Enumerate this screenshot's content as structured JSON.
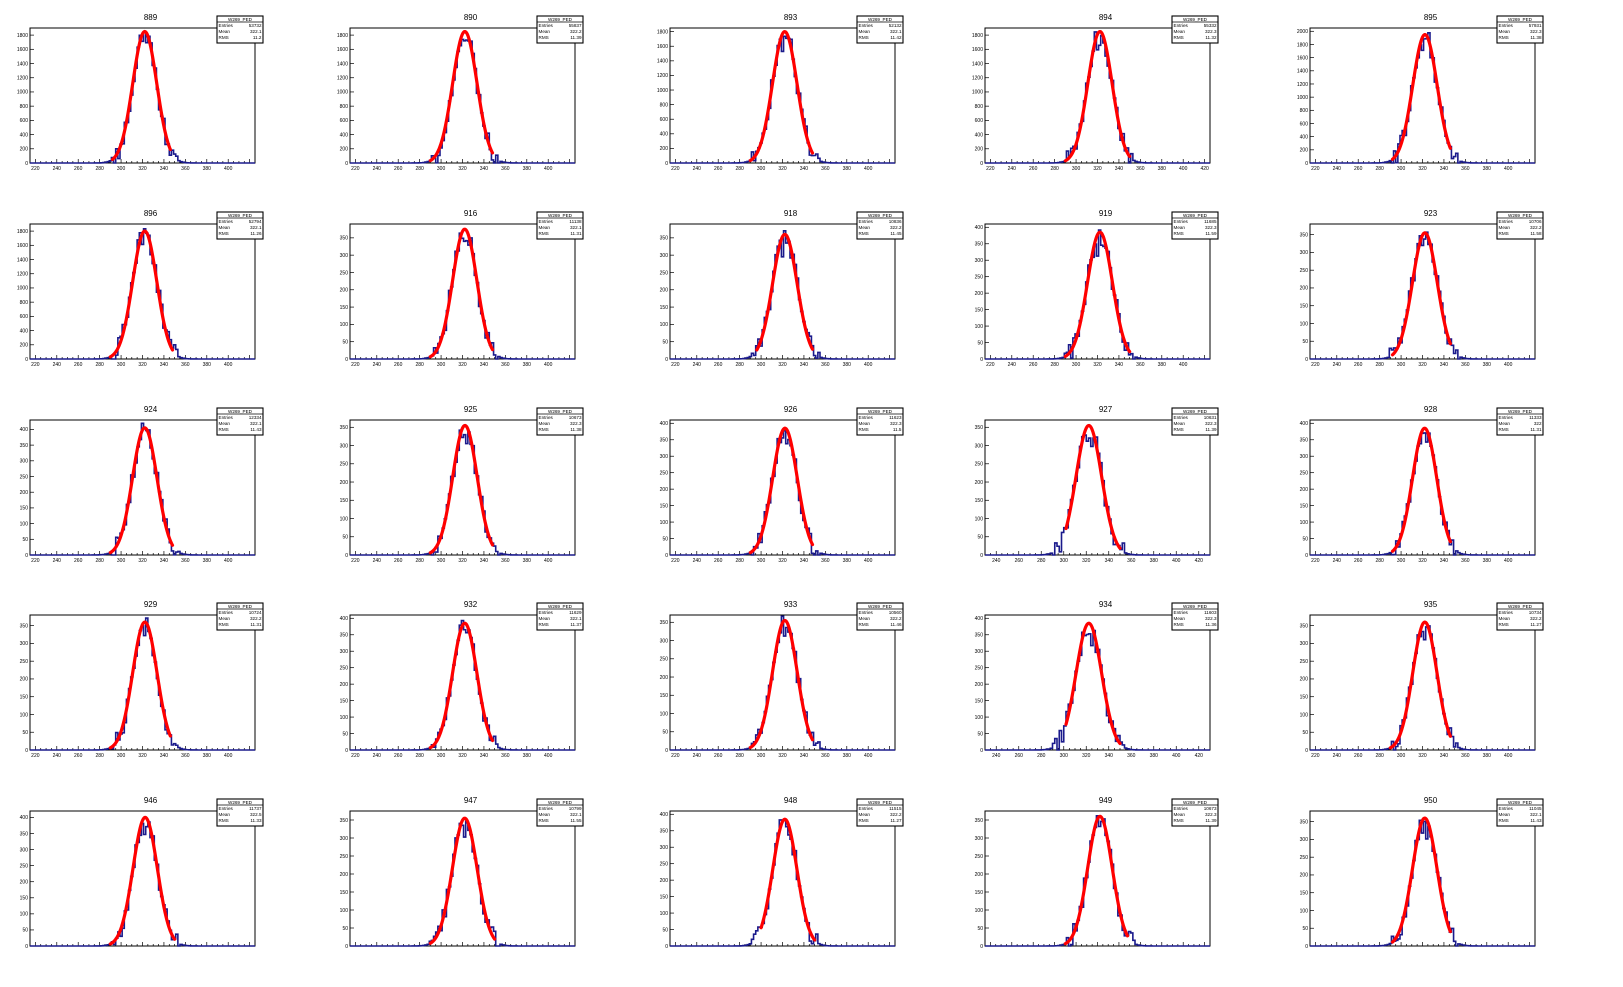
{
  "page": {
    "background": "#ffffff"
  },
  "style": {
    "hist_color": "#1a1a8c",
    "fit_color": "#ff0000",
    "frame_color": "#000000"
  },
  "chart_data": [
    {
      "type": "histogram",
      "title": "889",
      "xlim": [
        215,
        425
      ],
      "xticks": [
        220,
        240,
        260,
        280,
        300,
        320,
        340,
        360,
        380,
        400
      ],
      "ylim": [
        0,
        1900
      ],
      "yticks": [
        200,
        400,
        600,
        800,
        1000,
        1200,
        1400,
        1600,
        1800
      ],
      "mean": 322.1,
      "sigma": 11.2,
      "peak": 1850,
      "fit_range": [
        292,
        346
      ],
      "stats": {
        "name": "W269_PED",
        "entries": "53732",
        "mean": "322.1",
        "rms": "11.2"
      }
    },
    {
      "type": "histogram",
      "title": "890",
      "xlim": [
        215,
        425
      ],
      "xticks": [
        220,
        240,
        260,
        280,
        300,
        320,
        340,
        360,
        380,
        400
      ],
      "ylim": [
        0,
        1900
      ],
      "yticks": [
        200,
        400,
        600,
        800,
        1000,
        1200,
        1400,
        1600,
        1800
      ],
      "mean": 322.2,
      "sigma": 11.39,
      "peak": 1850,
      "fit_range": [
        290,
        348
      ],
      "stats": {
        "name": "W269_PED",
        "entries": "55837",
        "mean": "322.2",
        "rms": "11.39"
      }
    },
    {
      "type": "histogram",
      "title": "893",
      "xlim": [
        215,
        425
      ],
      "xticks": [
        220,
        240,
        260,
        280,
        300,
        320,
        340,
        360,
        380,
        400
      ],
      "ylim": [
        0,
        1850
      ],
      "yticks": [
        200,
        400,
        600,
        800,
        1000,
        1200,
        1400,
        1600,
        1800
      ],
      "mean": 322.1,
      "sigma": 11.42,
      "peak": 1800,
      "fit_range": [
        290,
        348
      ],
      "stats": {
        "name": "W269_PED",
        "entries": "52132",
        "mean": "322.1",
        "rms": "11.42"
      }
    },
    {
      "type": "histogram",
      "title": "894",
      "xlim": [
        215,
        425
      ],
      "xticks": [
        220,
        240,
        260,
        280,
        300,
        320,
        340,
        360,
        380,
        400,
        420
      ],
      "ylim": [
        0,
        1900
      ],
      "yticks": [
        200,
        400,
        600,
        800,
        1000,
        1200,
        1400,
        1600,
        1800
      ],
      "mean": 322.3,
      "sigma": 11.32,
      "peak": 1850,
      "fit_range": [
        290,
        350
      ],
      "stats": {
        "name": "W269_PED",
        "entries": "55332",
        "mean": "322.3",
        "rms": "11.32"
      }
    },
    {
      "type": "histogram",
      "title": "895",
      "xlim": [
        215,
        425
      ],
      "xticks": [
        220,
        240,
        260,
        280,
        300,
        320,
        340,
        360,
        380,
        400
      ],
      "ylim": [
        0,
        2050
      ],
      "yticks": [
        200,
        400,
        600,
        800,
        1000,
        1200,
        1400,
        1600,
        1800,
        2000
      ],
      "mean": 322.3,
      "sigma": 11.38,
      "peak": 1950,
      "fit_range": [
        292,
        346
      ],
      "stats": {
        "name": "W269_PED",
        "entries": "57931",
        "mean": "322.3",
        "rms": "11.38"
      }
    },
    {
      "type": "histogram",
      "title": "896",
      "xlim": [
        215,
        425
      ],
      "xticks": [
        220,
        240,
        260,
        280,
        300,
        320,
        340,
        360,
        380,
        400
      ],
      "ylim": [
        0,
        1900
      ],
      "yticks": [
        200,
        400,
        600,
        800,
        1000,
        1200,
        1400,
        1600,
        1800
      ],
      "mean": 322.1,
      "sigma": 11.26,
      "peak": 1800,
      "fit_range": [
        290,
        348
      ],
      "stats": {
        "name": "W269_PED",
        "entries": "52794",
        "mean": "322.1",
        "rms": "11.26"
      }
    },
    {
      "type": "histogram",
      "title": "916",
      "xlim": [
        215,
        425
      ],
      "xticks": [
        220,
        240,
        260,
        280,
        300,
        320,
        340,
        360,
        380,
        400
      ],
      "ylim": [
        0,
        390
      ],
      "yticks": [
        50,
        100,
        150,
        200,
        250,
        300,
        350
      ],
      "mean": 322.1,
      "sigma": 11.31,
      "peak": 375,
      "fit_range": [
        290,
        348
      ],
      "stats": {
        "name": "W269_PED",
        "entries": "11138",
        "mean": "322.1",
        "rms": "11.31"
      }
    },
    {
      "type": "histogram",
      "title": "918",
      "xlim": [
        215,
        425
      ],
      "xticks": [
        220,
        240,
        260,
        280,
        300,
        320,
        340,
        360,
        380,
        400
      ],
      "ylim": [
        0,
        390
      ],
      "yticks": [
        50,
        100,
        150,
        200,
        250,
        300,
        350
      ],
      "mean": 322.2,
      "sigma": 11.45,
      "peak": 360,
      "fit_range": [
        296,
        348
      ],
      "stats": {
        "name": "W269_PED",
        "entries": "10836",
        "mean": "322.2",
        "rms": "11.45"
      }
    },
    {
      "type": "histogram",
      "title": "919",
      "xlim": [
        215,
        425
      ],
      "xticks": [
        220,
        240,
        260,
        280,
        300,
        320,
        340,
        360,
        380,
        400
      ],
      "ylim": [
        0,
        410
      ],
      "yticks": [
        50,
        100,
        150,
        200,
        250,
        300,
        350,
        400
      ],
      "mean": 322.3,
      "sigma": 11.59,
      "peak": 385,
      "fit_range": [
        290,
        350
      ],
      "stats": {
        "name": "W269_PED",
        "entries": "11685",
        "mean": "322.3",
        "rms": "11.59"
      }
    },
    {
      "type": "histogram",
      "title": "923",
      "xlim": [
        215,
        425
      ],
      "xticks": [
        220,
        240,
        260,
        280,
        300,
        320,
        340,
        360,
        380,
        400
      ],
      "ylim": [
        0,
        380
      ],
      "yticks": [
        50,
        100,
        150,
        200,
        250,
        300,
        350
      ],
      "mean": 322.2,
      "sigma": 11.58,
      "peak": 355,
      "fit_range": [
        292,
        346
      ],
      "stats": {
        "name": "W269_PED",
        "entries": "10706",
        "mean": "322.2",
        "rms": "11.58"
      }
    },
    {
      "type": "histogram",
      "title": "924",
      "xlim": [
        215,
        425
      ],
      "xticks": [
        220,
        240,
        260,
        280,
        300,
        320,
        340,
        360,
        380,
        400
      ],
      "ylim": [
        0,
        430
      ],
      "yticks": [
        50,
        100,
        150,
        200,
        250,
        300,
        350,
        400
      ],
      "mean": 322.1,
      "sigma": 11.43,
      "peak": 405,
      "fit_range": [
        290,
        348
      ],
      "stats": {
        "name": "W269_PED",
        "entries": "12334",
        "mean": "322.1",
        "rms": "11.43"
      }
    },
    {
      "type": "histogram",
      "title": "925",
      "xlim": [
        215,
        425
      ],
      "xticks": [
        220,
        240,
        260,
        280,
        300,
        320,
        340,
        360,
        380,
        400
      ],
      "ylim": [
        0,
        370
      ],
      "yticks": [
        50,
        100,
        150,
        200,
        250,
        300,
        350
      ],
      "mean": 322.3,
      "sigma": 11.38,
      "peak": 355,
      "fit_range": [
        290,
        348
      ],
      "stats": {
        "name": "W269_PED",
        "entries": "10673",
        "mean": "322.3",
        "rms": "11.38"
      }
    },
    {
      "type": "histogram",
      "title": "926",
      "xlim": [
        215,
        425
      ],
      "xticks": [
        220,
        240,
        260,
        280,
        300,
        320,
        340,
        360,
        380,
        400
      ],
      "ylim": [
        0,
        410
      ],
      "yticks": [
        50,
        100,
        150,
        200,
        250,
        300,
        350,
        400
      ],
      "mean": 322.3,
      "sigma": 11.5,
      "peak": 385,
      "fit_range": [
        290,
        348
      ],
      "stats": {
        "name": "W269_PED",
        "entries": "11623",
        "mean": "322.3",
        "rms": "11.5"
      }
    },
    {
      "type": "histogram",
      "title": "927",
      "xlim": [
        230,
        430
      ],
      "xticks": [
        240,
        260,
        280,
        300,
        320,
        340,
        360,
        380,
        400,
        420
      ],
      "ylim": [
        0,
        370
      ],
      "yticks": [
        50,
        100,
        150,
        200,
        250,
        300,
        350
      ],
      "mean": 322.3,
      "sigma": 11.39,
      "peak": 355,
      "fit_range": [
        302,
        350
      ],
      "stats": {
        "name": "W269_PED",
        "entries": "10631",
        "mean": "322.3",
        "rms": "11.39"
      }
    },
    {
      "type": "histogram",
      "title": "928",
      "xlim": [
        215,
        425
      ],
      "xticks": [
        220,
        240,
        260,
        280,
        300,
        320,
        340,
        360,
        380,
        400
      ],
      "ylim": [
        0,
        410
      ],
      "yticks": [
        50,
        100,
        150,
        200,
        250,
        300,
        350,
        400
      ],
      "mean": 322,
      "sigma": 11.31,
      "peak": 385,
      "fit_range": [
        292,
        346
      ],
      "stats": {
        "name": "W269_PED",
        "entries": "11333",
        "mean": "322",
        "rms": "11.31"
      }
    },
    {
      "type": "histogram",
      "title": "929",
      "xlim": [
        215,
        425
      ],
      "xticks": [
        220,
        240,
        260,
        280,
        300,
        320,
        340,
        360,
        380,
        400
      ],
      "ylim": [
        0,
        380
      ],
      "yticks": [
        50,
        100,
        150,
        200,
        250,
        300,
        350
      ],
      "mean": 322.2,
      "sigma": 11.31,
      "peak": 360,
      "fit_range": [
        290,
        346
      ],
      "stats": {
        "name": "W269_PED",
        "entries": "10724",
        "mean": "322.2",
        "rms": "11.31"
      }
    },
    {
      "type": "histogram",
      "title": "932",
      "xlim": [
        215,
        425
      ],
      "xticks": [
        220,
        240,
        260,
        280,
        300,
        320,
        340,
        360,
        380,
        400
      ],
      "ylim": [
        0,
        410
      ],
      "yticks": [
        50,
        100,
        150,
        200,
        250,
        300,
        350,
        400
      ],
      "mean": 322.1,
      "sigma": 11.37,
      "peak": 385,
      "fit_range": [
        290,
        348
      ],
      "stats": {
        "name": "W269_PED",
        "entries": "11629",
        "mean": "322.1",
        "rms": "11.37"
      }
    },
    {
      "type": "histogram",
      "title": "933",
      "xlim": [
        215,
        425
      ],
      "xticks": [
        220,
        240,
        260,
        280,
        300,
        320,
        340,
        360,
        380,
        400
      ],
      "ylim": [
        0,
        370
      ],
      "yticks": [
        50,
        100,
        150,
        200,
        250,
        300,
        350
      ],
      "mean": 322.2,
      "sigma": 11.46,
      "peak": 355,
      "fit_range": [
        290,
        348
      ],
      "stats": {
        "name": "W269_PED",
        "entries": "10560",
        "mean": "322.2",
        "rms": "11.46"
      }
    },
    {
      "type": "histogram",
      "title": "934",
      "xlim": [
        230,
        430
      ],
      "xticks": [
        240,
        260,
        280,
        300,
        320,
        340,
        360,
        380,
        400,
        420
      ],
      "ylim": [
        0,
        410
      ],
      "yticks": [
        50,
        100,
        150,
        200,
        250,
        300,
        350,
        400
      ],
      "mean": 322.3,
      "sigma": 11.36,
      "peak": 385,
      "fit_range": [
        302,
        350
      ],
      "stats": {
        "name": "W269_PED",
        "entries": "11603",
        "mean": "322.3",
        "rms": "11.36"
      }
    },
    {
      "type": "histogram",
      "title": "935",
      "xlim": [
        215,
        425
      ],
      "xticks": [
        220,
        240,
        260,
        280,
        300,
        320,
        340,
        360,
        380,
        400
      ],
      "ylim": [
        0,
        380
      ],
      "yticks": [
        50,
        100,
        150,
        200,
        250,
        300,
        350
      ],
      "mean": 322.2,
      "sigma": 11.27,
      "peak": 360,
      "fit_range": [
        290,
        346
      ],
      "stats": {
        "name": "W269_PED",
        "entries": "10734",
        "mean": "322.2",
        "rms": "11.27"
      }
    },
    {
      "type": "histogram",
      "title": "946",
      "xlim": [
        215,
        425
      ],
      "xticks": [],
      "ylim": [
        0,
        420
      ],
      "yticks": [
        50,
        100,
        150,
        200,
        250,
        300,
        350,
        400
      ],
      "mean": 322.5,
      "sigma": 11.33,
      "peak": 400,
      "fit_range": [
        290,
        350
      ],
      "stats": {
        "name": "W269_PED",
        "entries": "11737",
        "mean": "322.5",
        "rms": "11.33"
      }
    },
    {
      "type": "histogram",
      "title": "947",
      "xlim": [
        215,
        425
      ],
      "xticks": [],
      "ylim": [
        0,
        375
      ],
      "yticks": [
        50,
        100,
        150,
        200,
        250,
        300,
        350
      ],
      "mean": 322.1,
      "sigma": 11.55,
      "peak": 355,
      "fit_range": [
        290,
        350
      ],
      "stats": {
        "name": "W269_PED",
        "entries": "10799",
        "mean": "322.1",
        "rms": "11.55"
      }
    },
    {
      "type": "histogram",
      "title": "948",
      "xlim": [
        215,
        425
      ],
      "xticks": [],
      "ylim": [
        0,
        410
      ],
      "yticks": [
        50,
        100,
        150,
        200,
        250,
        300,
        350,
        400
      ],
      "mean": 322.2,
      "sigma": 11.27,
      "peak": 385,
      "fit_range": [
        300,
        350
      ],
      "stats": {
        "name": "W269_PED",
        "entries": "11515",
        "mean": "322.2",
        "rms": "11.27"
      }
    },
    {
      "type": "histogram",
      "title": "949",
      "xlim": [
        215,
        425
      ],
      "xticks": [],
      "ylim": [
        0,
        375
      ],
      "yticks": [
        50,
        100,
        150,
        200,
        250,
        300,
        350
      ],
      "mean": 322.3,
      "sigma": 11.39,
      "peak": 360,
      "fit_range": [
        290,
        348
      ],
      "stats": {
        "name": "W269_PED",
        "entries": "10673",
        "mean": "322.3",
        "rms": "11.39"
      }
    },
    {
      "type": "histogram",
      "title": "950",
      "xlim": [
        215,
        425
      ],
      "xticks": [],
      "ylim": [
        0,
        380
      ],
      "yticks": [
        50,
        100,
        150,
        200,
        250,
        300,
        350
      ],
      "mean": 322.1,
      "sigma": 11.43,
      "peak": 360,
      "fit_range": [
        292,
        346
      ],
      "stats": {
        "name": "W269_PED",
        "entries": "11045",
        "mean": "322.1",
        "rms": "11.43"
      }
    }
  ]
}
